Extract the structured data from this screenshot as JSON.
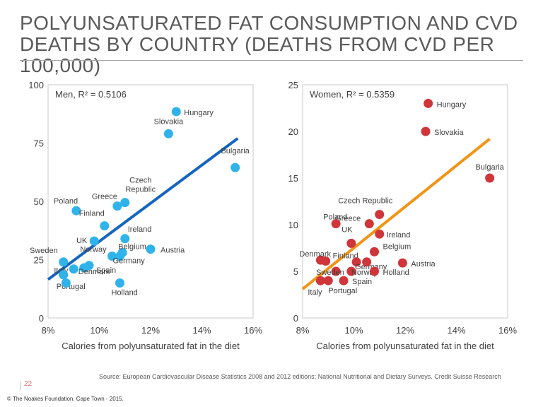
{
  "title": "POLYUNSATURATED FAT CONSUMPTION AND CVD DEATHS BY COUNTRY (DEATHS FROM CVD PER 100,000)",
  "source": "Source: European Cardiovascular Disease Statistics 2008 and 2012 editions; National Nutritional and Dietary Surveys. Credit Suisse Research",
  "page_number": "22",
  "copyright": "© The Noakes Foundation. Cape Town - 2015.",
  "chart_data": [
    {
      "type": "scatter",
      "annotation": "Men, R² = 0.5106",
      "xlabel": "Calories from polyunsaturated fat in the diet",
      "ylabel": "",
      "xlim": [
        0.08,
        0.16
      ],
      "ylim": [
        0,
        100
      ],
      "xticks": [
        "8%",
        "10%",
        "12%",
        "14%",
        "16%"
      ],
      "yticks": [
        "0",
        "25",
        "50",
        "75",
        "100"
      ],
      "point_color": "#2fb3ea",
      "trend_color": "#1565c0",
      "trendline": [
        [
          0.08,
          16.5
        ],
        [
          0.154,
          77
        ]
      ],
      "grid": false,
      "points": [
        {
          "label": "Hungary",
          "x": 0.13,
          "y": 88.5
        },
        {
          "label": "Slovakia",
          "x": 0.127,
          "y": 79
        },
        {
          "label": "Bulgaria",
          "x": 0.153,
          "y": 64.5
        },
        {
          "label": "Czech Republic",
          "x": 0.11,
          "y": 49.5
        },
        {
          "label": "Greece",
          "x": 0.107,
          "y": 48
        },
        {
          "label": "Poland",
          "x": 0.091,
          "y": 46
        },
        {
          "label": "Finland",
          "x": 0.102,
          "y": 39.5
        },
        {
          "label": "Ireland",
          "x": 0.11,
          "y": 34
        },
        {
          "label": "UK",
          "x": 0.098,
          "y": 33
        },
        {
          "label": "Belgium",
          "x": 0.109,
          "y": 28
        },
        {
          "label": "Austria",
          "x": 0.12,
          "y": 29.5
        },
        {
          "label": "Norway",
          "x": 0.105,
          "y": 26.5
        },
        {
          "label": "Germany",
          "x": 0.108,
          "y": 26.5
        },
        {
          "label": "Sweden",
          "x": 0.086,
          "y": 24
        },
        {
          "label": "Spain",
          "x": 0.096,
          "y": 22.5
        },
        {
          "label": "Italy",
          "x": 0.09,
          "y": 21
        },
        {
          "label": "Denmark",
          "x": 0.094,
          "y": 21.5
        },
        {
          "label": "Portugal",
          "x": 0.086,
          "y": 18.5
        },
        {
          "label": "",
          "x": 0.087,
          "y": 15
        },
        {
          "label": "Holland",
          "x": 0.108,
          "y": 15
        }
      ]
    },
    {
      "type": "scatter",
      "annotation": "Women, R² = 0.5359",
      "xlabel": "Calories from polyunsaturated fat in the diet",
      "ylabel": "",
      "xlim": [
        0.08,
        0.16
      ],
      "ylim": [
        0,
        25
      ],
      "xticks": [
        "8%",
        "10%",
        "12%",
        "14%",
        "16%"
      ],
      "yticks": [
        "0",
        "5",
        "10",
        "15",
        "20",
        "25"
      ],
      "point_color": "#d0353a",
      "trend_color": "#f29415",
      "trendline": [
        [
          0.08,
          3.1
        ],
        [
          0.153,
          19.2
        ]
      ],
      "grid": false,
      "points": [
        {
          "label": "Hungary",
          "x": 0.129,
          "y": 23
        },
        {
          "label": "Slovakia",
          "x": 0.128,
          "y": 20
        },
        {
          "label": "Bulgaria",
          "x": 0.153,
          "y": 15
        },
        {
          "label": "Czech Republic",
          "x": 0.11,
          "y": 11.1
        },
        {
          "label": "Greece",
          "x": 0.106,
          "y": 10.1
        },
        {
          "label": "Poland",
          "x": 0.093,
          "y": 10.1
        },
        {
          "label": "Ireland",
          "x": 0.11,
          "y": 9
        },
        {
          "label": "UK",
          "x": 0.099,
          "y": 8
        },
        {
          "label": "Belgium",
          "x": 0.108,
          "y": 7.1
        },
        {
          "label": "Denmark",
          "x": 0.087,
          "y": 6.2
        },
        {
          "label": "Finland",
          "x": 0.089,
          "y": 6.1
        },
        {
          "label": "Germany",
          "x": 0.101,
          "y": 6
        },
        {
          "label": "",
          "x": 0.105,
          "y": 6
        },
        {
          "label": "Austria",
          "x": 0.119,
          "y": 5.9
        },
        {
          "label": "Sweden",
          "x": 0.093,
          "y": 5
        },
        {
          "label": "Norway",
          "x": 0.099,
          "y": 5
        },
        {
          "label": "Holland",
          "x": 0.108,
          "y": 5
        },
        {
          "label": "Italy",
          "x": 0.087,
          "y": 4
        },
        {
          "label": "Portugal",
          "x": 0.09,
          "y": 4
        },
        {
          "label": "Spain",
          "x": 0.096,
          "y": 4
        }
      ]
    }
  ]
}
